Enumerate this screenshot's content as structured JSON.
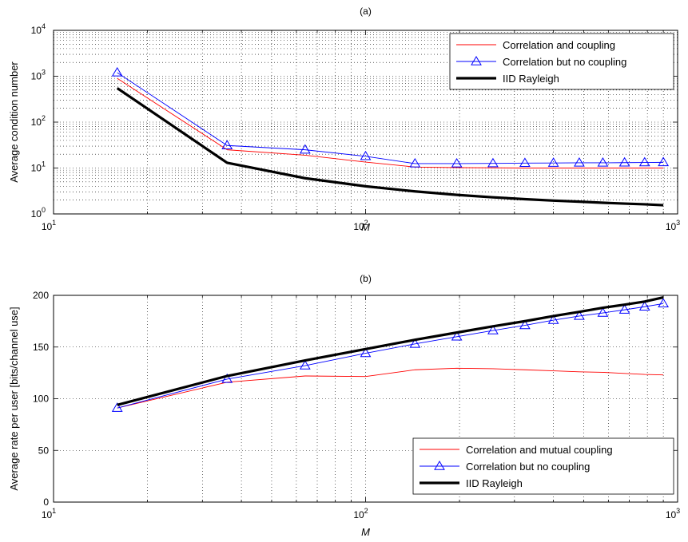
{
  "chart_data": [
    {
      "type": "line",
      "title": "(a)",
      "xlabel": "M",
      "ylabel": "Average condition number",
      "xscale": "log",
      "yscale": "log",
      "xlim": [
        10,
        1000
      ],
      "ylim": [
        1,
        10000
      ],
      "x_tick_labels": [
        {
          "base": "10",
          "exp": "1"
        },
        {
          "base": "10",
          "exp": "2"
        },
        {
          "base": "10",
          "exp": "3"
        }
      ],
      "y_tick_labels": [
        {
          "base": "10",
          "exp": "0"
        },
        {
          "base": "10",
          "exp": "1"
        },
        {
          "base": "10",
          "exp": "2"
        },
        {
          "base": "10",
          "exp": "3"
        },
        {
          "base": "10",
          "exp": "4"
        }
      ],
      "grid": true,
      "legend_position": "top-right",
      "series": [
        {
          "name": "Correlation and coupling",
          "color": "#ff0000",
          "marker": "none",
          "line_width": "thin",
          "x": [
            16,
            36,
            64,
            100,
            144,
            196,
            256,
            324,
            400,
            484,
            576,
            676,
            784,
            900
          ],
          "y": [
            900,
            25,
            19,
            13.5,
            10.5,
            10.2,
            10.1,
            10.0,
            10.0,
            10.0,
            10.0,
            10.0,
            10.0,
            10.0
          ]
        },
        {
          "name": "Correlation but no coupling",
          "color": "#0000ff",
          "marker": "triangle",
          "line_width": "thin",
          "x": [
            16,
            36,
            64,
            100,
            144,
            196,
            256,
            324,
            400,
            484,
            576,
            676,
            784,
            900
          ],
          "y": [
            1200,
            31,
            25,
            18,
            12.5,
            12.5,
            12.6,
            12.8,
            12.9,
            13.0,
            13.0,
            13.1,
            13.2,
            13.3
          ]
        },
        {
          "name": "IID Rayleigh",
          "color": "#000000",
          "marker": "none",
          "line_width": "thick",
          "x": [
            16,
            36,
            64,
            100,
            144,
            196,
            256,
            324,
            400,
            484,
            576,
            676,
            784,
            900
          ],
          "y": [
            550,
            13,
            6,
            4,
            3.1,
            2.6,
            2.3,
            2.1,
            1.95,
            1.85,
            1.75,
            1.68,
            1.62,
            1.55
          ]
        }
      ]
    },
    {
      "type": "line",
      "title": "(b)",
      "xlabel": "M",
      "ylabel": "Average rate per user [bits/channel use]",
      "xscale": "log",
      "yscale": "linear",
      "xlim": [
        10,
        1000
      ],
      "ylim": [
        0,
        200
      ],
      "x_tick_labels": [
        {
          "base": "10",
          "exp": "1"
        },
        {
          "base": "10",
          "exp": "2"
        },
        {
          "base": "10",
          "exp": "3"
        }
      ],
      "y_ticks": [
        0,
        50,
        100,
        150,
        200
      ],
      "y_tick_labels": [
        "0",
        "50",
        "100",
        "150",
        "200"
      ],
      "grid": true,
      "legend_position": "bottom-right",
      "series": [
        {
          "name": "Correlation and mutual coupling",
          "color": "#ff0000",
          "marker": "none",
          "line_width": "thin",
          "x": [
            16,
            36,
            64,
            100,
            144,
            196,
            256,
            324,
            400,
            484,
            576,
            676,
            784,
            900
          ],
          "y": [
            91,
            116,
            122,
            121.5,
            128,
            129.5,
            129,
            128,
            127,
            126,
            125.5,
            124.5,
            123.5,
            123
          ]
        },
        {
          "name": "Correlation but no coupling",
          "color": "#0000ff",
          "marker": "triangle",
          "line_width": "thin",
          "x": [
            16,
            36,
            64,
            100,
            144,
            196,
            256,
            324,
            400,
            484,
            576,
            676,
            784,
            900
          ],
          "y": [
            91,
            119,
            132,
            144,
            153,
            160,
            166,
            171,
            176,
            180,
            183,
            186,
            189,
            192
          ]
        },
        {
          "name": "IID Rayleigh",
          "color": "#000000",
          "marker": "none",
          "line_width": "thick",
          "x": [
            16,
            36,
            64,
            100,
            144,
            196,
            256,
            324,
            400,
            484,
            576,
            676,
            784,
            900
          ],
          "y": [
            94,
            122,
            137,
            148,
            157,
            164,
            170,
            175,
            180,
            184,
            188,
            191,
            194,
            198
          ]
        }
      ]
    }
  ]
}
